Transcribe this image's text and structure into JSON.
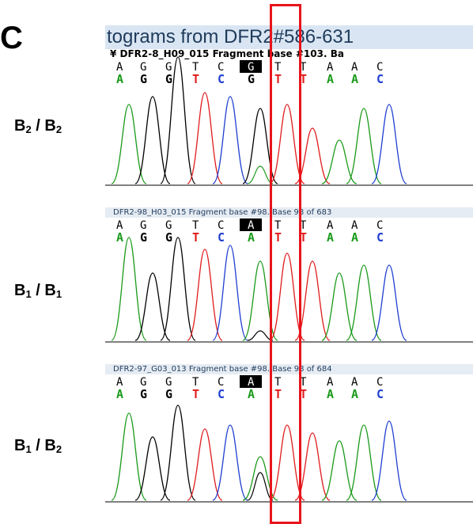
{
  "panel_letter": "C",
  "title": "tograms from DFR2#586-631",
  "traces": [
    {
      "genotype_main": "B",
      "genotype_sub1": "2",
      "genotype_sep": " / B",
      "genotype_sub2": "2",
      "header": "¥ DFR2-8_H09_015 Fragment base #103. Ba",
      "bases": [
        "A",
        "G",
        "G",
        "T",
        "C",
        "G",
        "T",
        "T",
        "A",
        "A",
        "C"
      ],
      "calls": [
        "A",
        "G",
        "G",
        "T",
        "C",
        "G",
        "T",
        "T",
        "A",
        "A",
        "C"
      ],
      "highlight_index": 5
    },
    {
      "genotype_main": "B",
      "genotype_sub1": "1",
      "genotype_sep": " / B",
      "genotype_sub2": "1",
      "header": "DFR2-98_H03_015 Fragment base #98. Base 98 of 683",
      "bases": [
        "A",
        "G",
        "G",
        "T",
        "C",
        "A",
        "T",
        "T",
        "A",
        "A",
        "C"
      ],
      "calls": [
        "A",
        "G",
        "G",
        "T",
        "C",
        "A",
        "T",
        "T",
        "A",
        "A",
        "C"
      ],
      "highlight_index": 5
    },
    {
      "genotype_main": "B",
      "genotype_sub1": "1",
      "genotype_sep": " / B",
      "genotype_sub2": "2",
      "header": "DFR2-97_G03_013 Fragment base #98. Base 98 of 684",
      "bases": [
        "A",
        "G",
        "G",
        "T",
        "C",
        "A",
        "T",
        "T",
        "A",
        "A",
        "C"
      ],
      "calls": [
        "A",
        "G",
        "G",
        "T",
        "C",
        "A",
        "T",
        "T",
        "A",
        "A",
        "C"
      ],
      "highlight_index": 5
    }
  ],
  "colors": {
    "A": "#1a9a1a",
    "C": "#1f3fd0",
    "G": "#000000",
    "T": "#e01b1b",
    "highlight": "#e8141b"
  }
}
